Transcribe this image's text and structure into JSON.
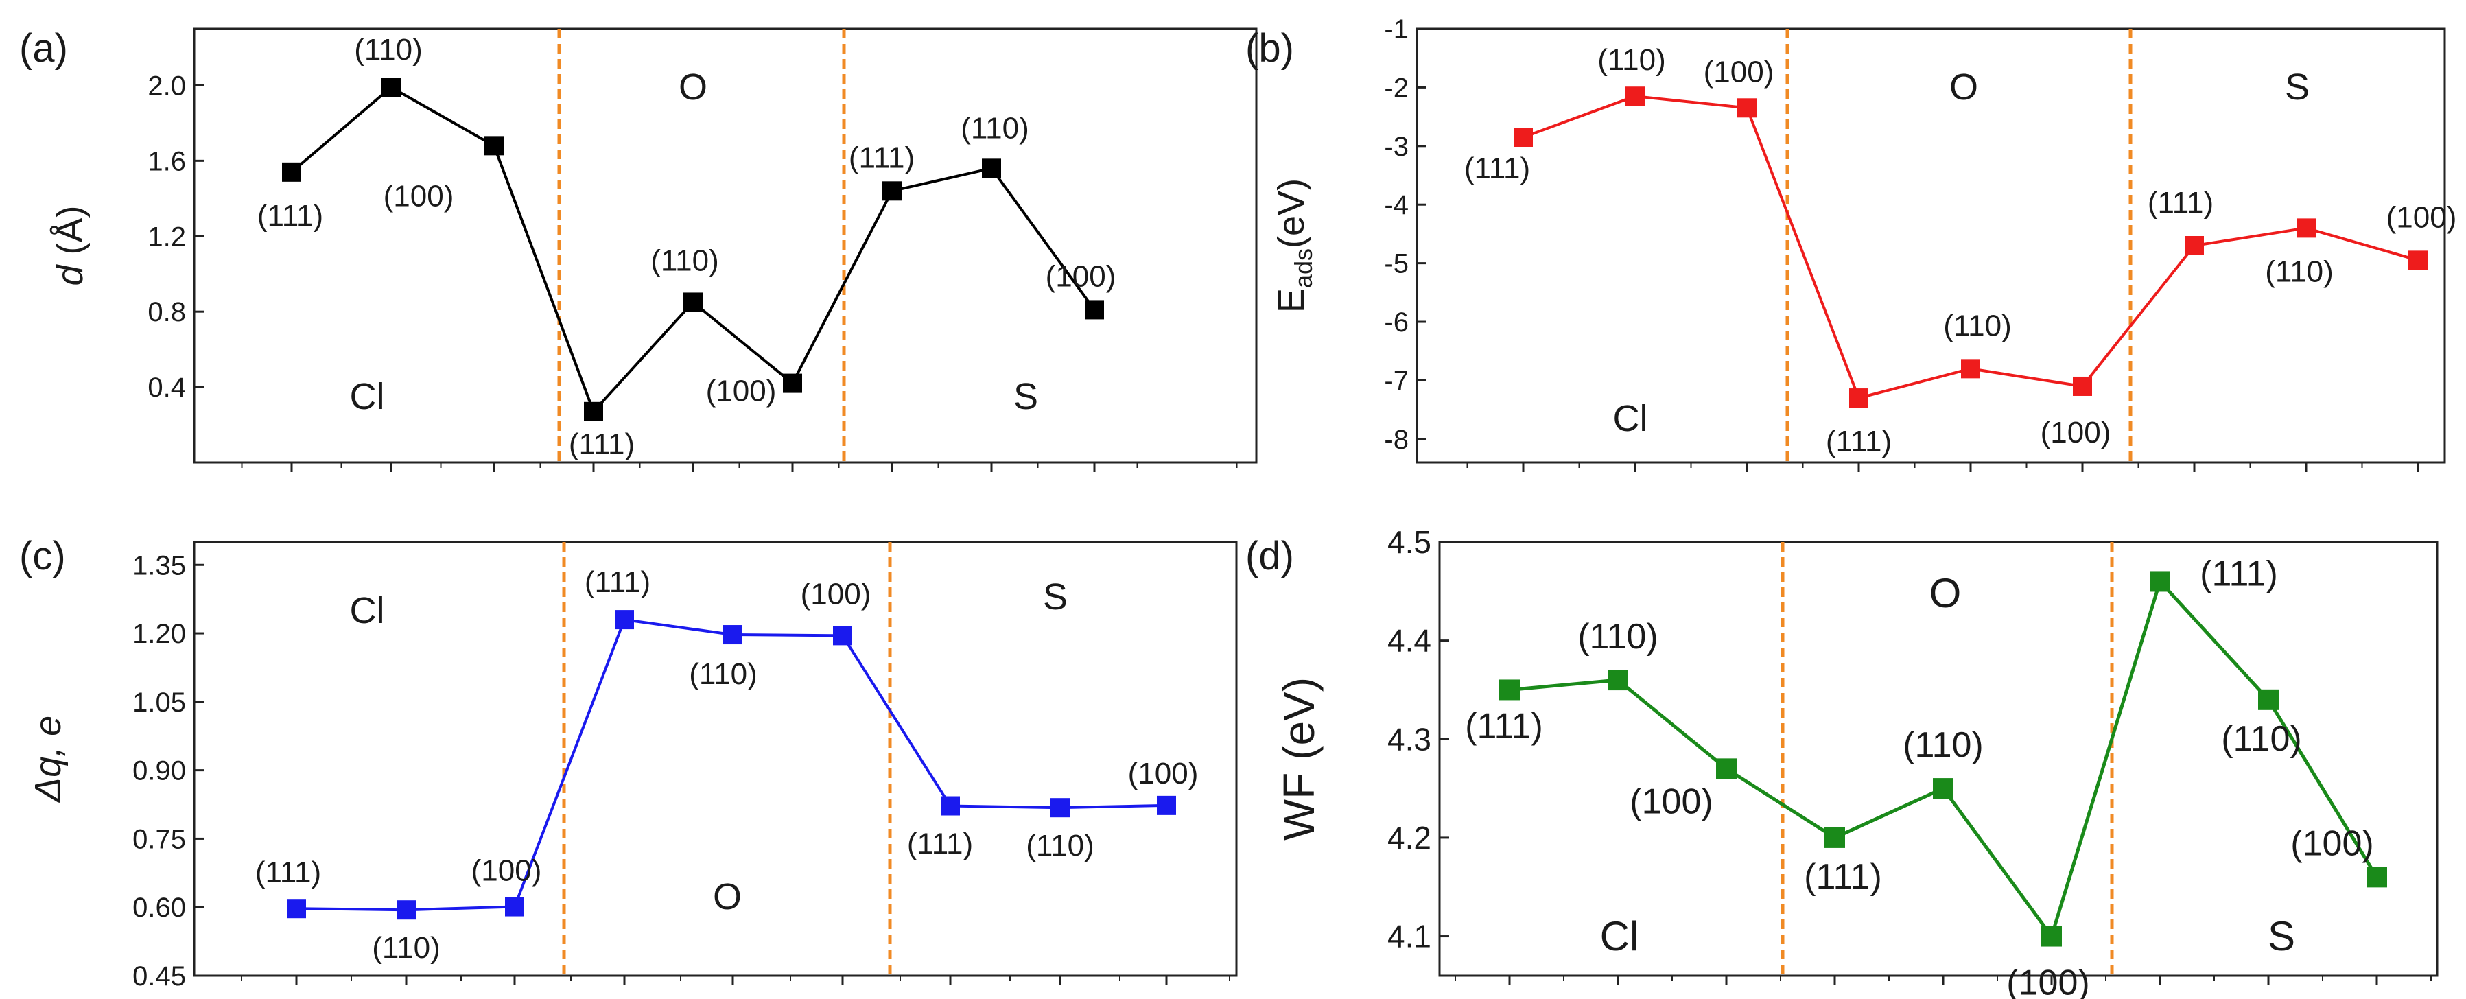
{
  "chart_data": [
    {
      "panel": "(a)",
      "type": "line",
      "color": "#000000",
      "marker": "square",
      "categories": [
        "Cl (111)",
        "Cl (110)",
        "Cl (100)",
        "O (111)",
        "O (110)",
        "O (100)",
        "S (111)",
        "S (110)",
        "S (100)"
      ],
      "values": [
        1.54,
        1.99,
        1.68,
        0.27,
        0.85,
        0.42,
        1.44,
        1.56,
        0.81
      ],
      "point_labels": [
        "(111)",
        "(110)",
        "(100)",
        "(111)",
        "(110)",
        "(100)",
        "(111)",
        "(110)",
        "(100)"
      ],
      "regions": [
        {
          "label": "Cl"
        },
        {
          "label": "O"
        },
        {
          "label": "S"
        }
      ],
      "ylabel": "d (Å)",
      "ylabel_italic": "d",
      "ylabel_rest": "(Å)",
      "ylim": [
        0.0,
        2.3
      ],
      "yticks": [
        "0.4",
        "0.8",
        "1.2",
        "1.6",
        "2.0"
      ],
      "separator_color": "#f08a24"
    },
    {
      "panel": "(b)",
      "type": "line",
      "color": "#ee1c1c",
      "marker": "square",
      "categories": [
        "Cl (111)",
        "Cl (110)",
        "Cl (100)",
        "O (111)",
        "O (110)",
        "O (100)",
        "S (111)",
        "S (110)",
        "S (100)"
      ],
      "values": [
        -2.85,
        -2.15,
        -2.35,
        -7.3,
        -6.8,
        -7.1,
        -4.7,
        -4.4,
        -4.95
      ],
      "point_labels": [
        "(111)",
        "(110)",
        "(100)",
        "(111)",
        "(110)",
        "(100)",
        "(111)",
        "(110)",
        "(100)"
      ],
      "regions": [
        {
          "label": "Cl"
        },
        {
          "label": "O"
        },
        {
          "label": "S"
        }
      ],
      "ylabel": "E_ads (eV)",
      "ylabel_main": "E",
      "ylabel_sub": "ads",
      "ylabel_rest": "(eV)",
      "ylim": [
        -8.4,
        -1.0
      ],
      "yticks": [
        "-8",
        "-7",
        "-6",
        "-5",
        "-4",
        "-3",
        "-2",
        "-1"
      ],
      "separator_color": "#f08a24"
    },
    {
      "panel": "(c)",
      "type": "line",
      "color": "#1a1aee",
      "marker": "square",
      "categories": [
        "Cl (111)",
        "Cl (110)",
        "Cl (100)",
        "O (111)",
        "O (110)",
        "O (100)",
        "S (111)",
        "S (110)",
        "S (100)"
      ],
      "values": [
        0.597,
        0.594,
        0.601,
        1.23,
        1.197,
        1.195,
        0.822,
        0.818,
        0.823
      ],
      "point_labels": [
        "(111)",
        "(110)",
        "(100)",
        "(111)",
        "(110)",
        "(100)",
        "(111)",
        "(110)",
        "(100)"
      ],
      "regions": [
        {
          "label": "Cl"
        },
        {
          "label": "O"
        },
        {
          "label": "S"
        }
      ],
      "ylabel": "Δq, e",
      "ylim": [
        0.45,
        1.4
      ],
      "yticks": [
        "0.45",
        "0.60",
        "0.75",
        "0.90",
        "1.05",
        "1.20",
        "1.35"
      ],
      "separator_color": "#f08a24"
    },
    {
      "panel": "(d)",
      "type": "line",
      "color": "#1a8a1a",
      "marker": "square",
      "categories": [
        "Cl (111)",
        "Cl (110)",
        "Cl (100)",
        "O (111)",
        "O (110)",
        "O (100)",
        "S (111)",
        "S (110)",
        "S (100)"
      ],
      "values": [
        4.35,
        4.36,
        4.27,
        4.2,
        4.25,
        4.1,
        4.46,
        4.34,
        4.16
      ],
      "point_labels": [
        "(111)",
        "(110)",
        "(100)",
        "(111)",
        "(110)",
        "(100)",
        "(111)",
        "(110)",
        "(100)"
      ],
      "regions": [
        {
          "label": "Cl"
        },
        {
          "label": "O"
        },
        {
          "label": "S"
        }
      ],
      "ylabel": "WF (eV)",
      "ylim": [
        4.06,
        4.5
      ],
      "yticks": [
        "4.1",
        "4.2",
        "4.3",
        "4.4",
        "4.5"
      ],
      "separator_color": "#f08a24"
    }
  ]
}
